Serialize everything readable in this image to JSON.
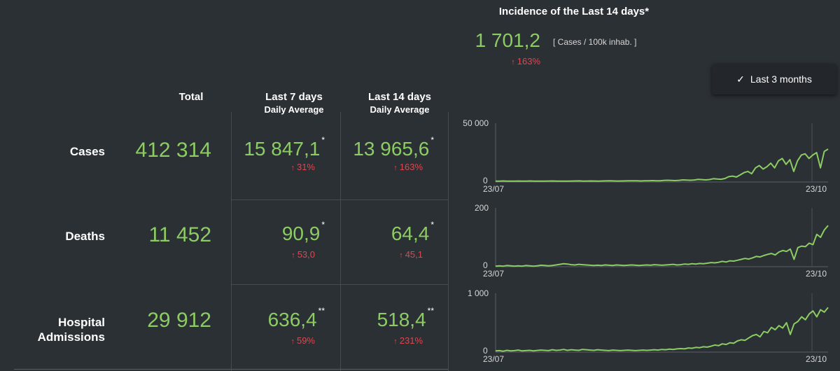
{
  "incidence": {
    "title": "Incidence of the Last 14 days*",
    "value": "1 701,2",
    "unit": "[ Cases / 100k inhab. ]",
    "change": "163%"
  },
  "period_button": {
    "label": "Last 3 months",
    "icon": "check-icon"
  },
  "headers": {
    "total": "Total",
    "last7_line1": "Last 7 days",
    "last7_line2": "Daily Average",
    "last14_line1": "Last 14 days",
    "last14_line2": "Daily Average"
  },
  "rows": [
    {
      "label_line1": "Cases",
      "label_line2": "",
      "total": "412 314",
      "avg7": "15 847,1",
      "avg7_mark": "*",
      "avg7_change": "31%",
      "avg14": "13 965,6",
      "avg14_mark": "*",
      "avg14_change": "163%"
    },
    {
      "label_line1": "Deaths",
      "label_line2": "",
      "total": "11 452",
      "avg7": "90,9",
      "avg7_mark": "*",
      "avg7_change": "53,0",
      "avg14": "64,4",
      "avg14_mark": "*",
      "avg14_change": "45,1"
    },
    {
      "label_line1": "Hospital",
      "label_line2": "Admissions",
      "total": "29 912",
      "avg7": "636,4",
      "avg7_mark": "**",
      "avg7_change": "59%",
      "avg14": "518,4",
      "avg14_mark": "**",
      "avg14_change": "231%"
    }
  ],
  "colors": {
    "positive": "#8ccc63",
    "negative": "#e0464e",
    "background": "#2b3035",
    "grid": "#454b51"
  },
  "chart_data": [
    {
      "type": "line",
      "series_for": "Cases",
      "ytick_top": "50 000",
      "ytick_bottom": "0",
      "xtick_left": "23/07",
      "xtick_right": "23/10",
      "ylim": [
        0,
        50000
      ],
      "values": [
        800,
        700,
        900,
        750,
        800,
        700,
        850,
        800,
        750,
        900,
        800,
        700,
        750,
        800,
        850,
        900,
        800,
        750,
        700,
        800,
        850,
        900,
        950,
        800,
        850,
        900,
        850,
        800,
        900,
        950,
        1000,
        900,
        850,
        900,
        950,
        1000,
        1100,
        1000,
        900,
        1000,
        1100,
        1200,
        1000,
        1100,
        1300,
        1500,
        1300,
        1200,
        1400,
        1800,
        1600,
        1500,
        1700,
        2200,
        2000,
        1800,
        2100,
        2800,
        2500,
        2300,
        3000,
        4500,
        5000,
        4200,
        6000,
        8000,
        9000,
        7000,
        12000,
        14000,
        11000,
        13000,
        16000,
        12000,
        18000,
        20000,
        15000,
        19000,
        9000,
        18000,
        23000,
        24000,
        20000,
        23000,
        25000,
        12000,
        26000,
        28000
      ]
    },
    {
      "type": "line",
      "series_for": "Deaths",
      "ytick_top": "200",
      "ytick_bottom": "0",
      "xtick_left": "23/07",
      "xtick_right": "23/10",
      "ylim": [
        0,
        200
      ],
      "values": [
        2,
        3,
        2,
        4,
        3,
        2,
        3,
        2,
        4,
        3,
        2,
        3,
        5,
        4,
        3,
        4,
        6,
        8,
        10,
        9,
        7,
        6,
        8,
        7,
        6,
        5,
        4,
        5,
        4,
        6,
        5,
        4,
        6,
        5,
        4,
        5,
        6,
        5,
        4,
        5,
        6,
        5,
        7,
        6,
        5,
        6,
        7,
        8,
        6,
        7,
        9,
        8,
        10,
        9,
        11,
        10,
        12,
        14,
        13,
        15,
        18,
        16,
        20,
        19,
        22,
        25,
        28,
        26,
        30,
        35,
        33,
        38,
        42,
        45,
        40,
        50,
        55,
        52,
        60,
        25,
        65,
        70,
        68,
        80,
        75,
        110,
        100,
        125,
        140
      ]
    },
    {
      "type": "line",
      "series_for": "Hospital Admissions",
      "ytick_top": "1 000",
      "ytick_bottom": "0",
      "xtick_left": "23/07",
      "xtick_right": "23/10",
      "ylim": [
        0,
        1000
      ],
      "values": [
        20,
        25,
        15,
        30,
        20,
        25,
        35,
        20,
        25,
        30,
        22,
        28,
        35,
        30,
        25,
        40,
        30,
        35,
        45,
        30,
        40,
        35,
        30,
        45,
        40,
        35,
        30,
        40,
        35,
        30,
        25,
        35,
        30,
        25,
        30,
        35,
        30,
        25,
        30,
        35,
        30,
        35,
        40,
        35,
        45,
        40,
        50,
        45,
        55,
        60,
        55,
        70,
        65,
        80,
        75,
        90,
        85,
        100,
        120,
        110,
        140,
        130,
        160,
        150,
        190,
        210,
        200,
        240,
        280,
        300,
        260,
        350,
        330,
        420,
        380,
        450,
        410,
        500,
        300,
        480,
        520,
        600,
        550,
        650,
        700,
        600,
        720,
        680,
        760
      ]
    }
  ]
}
